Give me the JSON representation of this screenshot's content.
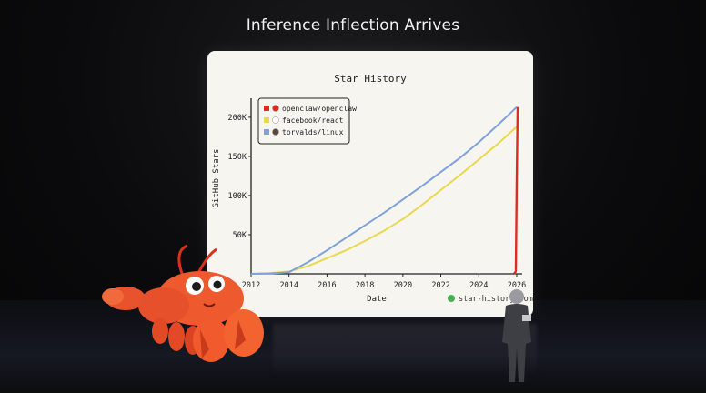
{
  "slide": {
    "headline": "Inference Inflection Arrives"
  },
  "chart_data": {
    "type": "line",
    "title": "Star History",
    "xlabel": "Date",
    "ylabel": "GitHub Stars",
    "xlim": [
      2012,
      2026
    ],
    "ylim": [
      0,
      215000
    ],
    "x_ticks": [
      "2012",
      "2014",
      "2016",
      "2018",
      "2020",
      "2022",
      "2024",
      "2026"
    ],
    "y_ticks": [
      {
        "value": 50000,
        "label": "50K"
      },
      {
        "value": 100000,
        "label": "100K"
      },
      {
        "value": 150000,
        "label": "150K"
      },
      {
        "value": 200000,
        "label": "200K"
      }
    ],
    "legend_position": "top-left",
    "series": [
      {
        "name": "openclaw/openclaw",
        "color": "#e02b20",
        "x": [
          2025.85,
          2025.95,
          2026.0,
          2026.05
        ],
        "y": [
          0,
          3000,
          120000,
          213000
        ]
      },
      {
        "name": "facebook/react",
        "color": "#ead84f",
        "x": [
          2012,
          2013,
          2014,
          2015,
          2016,
          2017,
          2018,
          2019,
          2020,
          2021,
          2022,
          2023,
          2024,
          2025,
          2026
        ],
        "y": [
          0,
          1000,
          3000,
          10000,
          20000,
          30000,
          42000,
          55000,
          70000,
          88000,
          107000,
          126000,
          146000,
          166000,
          188000
        ]
      },
      {
        "name": "torvalds/linux",
        "color": "#7ea2d9",
        "x": [
          2012,
          2013,
          2014,
          2015,
          2016,
          2017,
          2018,
          2019,
          2020,
          2021,
          2022,
          2023,
          2024,
          2025,
          2026
        ],
        "y": [
          0,
          500,
          2000,
          15000,
          30000,
          46000,
          62000,
          78000,
          95000,
          112000,
          130000,
          148000,
          168000,
          190000,
          213000
        ]
      }
    ],
    "watermark": "star-history.com"
  }
}
